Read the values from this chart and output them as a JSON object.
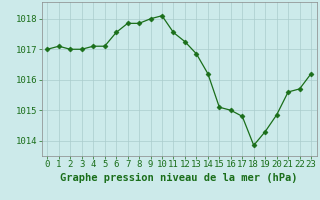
{
  "x": [
    0,
    1,
    2,
    3,
    4,
    5,
    6,
    7,
    8,
    9,
    10,
    11,
    12,
    13,
    14,
    15,
    16,
    17,
    18,
    19,
    20,
    21,
    22,
    23
  ],
  "y": [
    1017.0,
    1017.1,
    1017.0,
    1017.0,
    1017.1,
    1017.1,
    1017.55,
    1017.85,
    1017.85,
    1018.0,
    1018.1,
    1017.55,
    1017.25,
    1016.85,
    1016.2,
    1015.1,
    1015.0,
    1014.8,
    1013.85,
    1014.3,
    1014.85,
    1015.6,
    1015.7,
    1016.2
  ],
  "line_color": "#1a6e1a",
  "marker": "D",
  "marker_size": 2.5,
  "bg_color": "#cceaea",
  "grid_color": "#aacccc",
  "xlabel": "Graphe pression niveau de la mer (hPa)",
  "xlabel_fontsize": 7.5,
  "xlabel_color": "#1a6e1a",
  "ylabel_ticks": [
    1014,
    1015,
    1016,
    1017,
    1018
  ],
  "ylim": [
    1013.5,
    1018.55
  ],
  "xlim": [
    -0.5,
    23.5
  ],
  "tick_fontsize": 6.5,
  "tick_color": "#1a6e1a",
  "spine_color": "#888888"
}
